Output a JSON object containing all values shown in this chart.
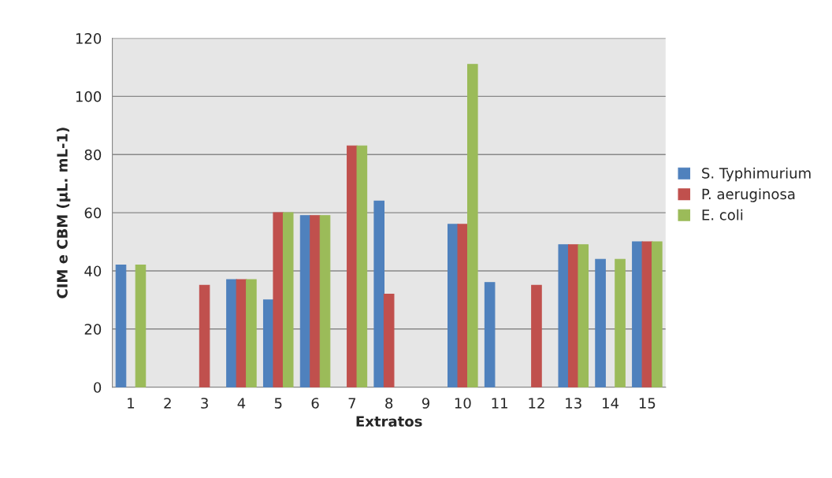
{
  "chart_data": {
    "type": "bar",
    "xlabel": "Extratos",
    "ylabel": "CIM e CBM (µL. mL-1)",
    "categories": [
      "1",
      "2",
      "3",
      "4",
      "5",
      "6",
      "7",
      "8",
      "9",
      "10",
      "11",
      "12",
      "13",
      "14",
      "15"
    ],
    "series": [
      {
        "name": "S. Typhimurium",
        "color": "#4f81bd",
        "values": [
          42,
          null,
          null,
          37,
          30,
          59,
          null,
          64,
          null,
          56,
          36,
          null,
          49,
          44,
          50
        ]
      },
      {
        "name": "P. aeruginosa",
        "color": "#c0504d",
        "values": [
          null,
          null,
          35,
          37,
          60,
          59,
          83,
          32,
          null,
          56,
          null,
          35,
          49,
          null,
          50
        ]
      },
      {
        "name": "E. coli",
        "color": "#9bbb59",
        "values": [
          42,
          null,
          null,
          37,
          60,
          59,
          83,
          null,
          null,
          111,
          null,
          null,
          49,
          44,
          50
        ]
      }
    ],
    "ylim": [
      0,
      120
    ],
    "yticks": [
      0,
      20,
      40,
      60,
      80,
      100,
      120
    ],
    "grid": "y",
    "legend": "right"
  }
}
